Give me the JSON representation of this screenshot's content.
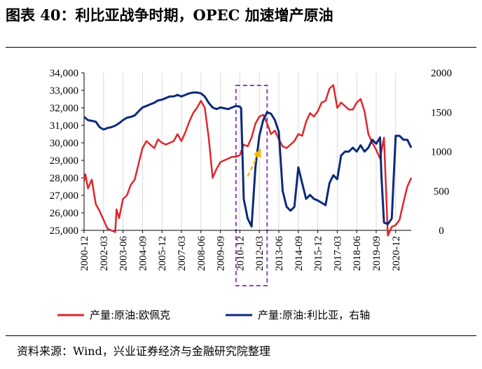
{
  "title": "图表 40：利比亚战争时期，OPEC 加速增产原油",
  "source": "资料来源：Wind，兴业证券经济与金融研究院整理",
  "colors": {
    "opec": "#e0262b",
    "libya": "#0c2a7c",
    "box": "#8b44b8",
    "arrow": "#f5b800"
  },
  "chart_data": {
    "type": "line",
    "x_tick_labels": [
      "2000-12",
      "2002-03",
      "2003-06",
      "2004-09",
      "2005-12",
      "2007-03",
      "2008-06",
      "2009-09",
      "2010-12",
      "2012-03",
      "2013-06",
      "2014-09",
      "2015-12",
      "2017-03",
      "2018-06",
      "2019-09",
      "2020-12"
    ],
    "y_left": {
      "min": 25000,
      "max": 34000,
      "step": 1000,
      "tick_labels": [
        "25,000",
        "26,000",
        "27,000",
        "28,000",
        "29,000",
        "30,000",
        "31,000",
        "32,000",
        "33,000",
        "34,000"
      ]
    },
    "y_right": {
      "min": 0,
      "max": 2000,
      "step": 500,
      "tick_labels": [
        "0",
        "500",
        "1000",
        "1500",
        "2000"
      ]
    },
    "highlight_box": {
      "x_start": "2010-09",
      "x_end": "2012-09"
    },
    "arrow": {
      "from": "2011-06",
      "to": "2012-04"
    },
    "series": [
      {
        "name": "产量:原油:欧佩克",
        "axis": "left",
        "points": [
          [
            "2000-12",
            27800
          ],
          [
            "2001-01",
            28200
          ],
          [
            "2001-03",
            27400
          ],
          [
            "2001-06",
            27900
          ],
          [
            "2001-09",
            26500
          ],
          [
            "2001-12",
            26100
          ],
          [
            "2002-03",
            25600
          ],
          [
            "2002-06",
            25100
          ],
          [
            "2002-09",
            25000
          ],
          [
            "2002-12",
            24900
          ],
          [
            "2003-01",
            26200
          ],
          [
            "2003-03",
            25700
          ],
          [
            "2003-06",
            26800
          ],
          [
            "2003-09",
            27000
          ],
          [
            "2003-12",
            27600
          ],
          [
            "2004-03",
            27900
          ],
          [
            "2004-06",
            28800
          ],
          [
            "2004-09",
            29700
          ],
          [
            "2004-12",
            30100
          ],
          [
            "2005-03",
            29900
          ],
          [
            "2005-06",
            29700
          ],
          [
            "2005-09",
            30200
          ],
          [
            "2005-12",
            30000
          ],
          [
            "2006-03",
            29900
          ],
          [
            "2006-06",
            30000
          ],
          [
            "2006-09",
            30100
          ],
          [
            "2006-12",
            30500
          ],
          [
            "2007-03",
            30100
          ],
          [
            "2007-06",
            30600
          ],
          [
            "2007-09",
            31200
          ],
          [
            "2007-12",
            31700
          ],
          [
            "2008-03",
            32000
          ],
          [
            "2008-06",
            32400
          ],
          [
            "2008-09",
            32000
          ],
          [
            "2008-12",
            30300
          ],
          [
            "2009-03",
            28000
          ],
          [
            "2009-06",
            28500
          ],
          [
            "2009-09",
            28900
          ],
          [
            "2009-12",
            29000
          ],
          [
            "2010-03",
            29100
          ],
          [
            "2010-06",
            29200
          ],
          [
            "2010-09",
            29200
          ],
          [
            "2010-12",
            29300
          ],
          [
            "2011-03",
            29900
          ],
          [
            "2011-06",
            29800
          ],
          [
            "2011-09",
            30300
          ],
          [
            "2011-12",
            31100
          ],
          [
            "2012-03",
            31500
          ],
          [
            "2012-06",
            31600
          ],
          [
            "2012-09",
            31100
          ],
          [
            "2012-12",
            30500
          ],
          [
            "2013-03",
            30700
          ],
          [
            "2013-06",
            30200
          ],
          [
            "2013-09",
            29800
          ],
          [
            "2013-12",
            29700
          ],
          [
            "2014-03",
            29900
          ],
          [
            "2014-06",
            30100
          ],
          [
            "2014-09",
            30500
          ],
          [
            "2014-12",
            30400
          ],
          [
            "2015-03",
            31200
          ],
          [
            "2015-06",
            31700
          ],
          [
            "2015-09",
            31500
          ],
          [
            "2015-12",
            31800
          ],
          [
            "2016-03",
            32300
          ],
          [
            "2016-06",
            32400
          ],
          [
            "2016-09",
            33100
          ],
          [
            "2016-12",
            33300
          ],
          [
            "2017-03",
            32000
          ],
          [
            "2017-06",
            32300
          ],
          [
            "2017-09",
            32100
          ],
          [
            "2017-12",
            31900
          ],
          [
            "2018-03",
            31900
          ],
          [
            "2018-06",
            32300
          ],
          [
            "2018-09",
            32500
          ],
          [
            "2018-12",
            31800
          ],
          [
            "2019-03",
            30500
          ],
          [
            "2019-06",
            30000
          ],
          [
            "2019-09",
            29600
          ],
          [
            "2019-12",
            29100
          ],
          [
            "2020-03",
            30300
          ],
          [
            "2020-06",
            24700
          ],
          [
            "2020-09",
            25200
          ],
          [
            "2020-12",
            25300
          ],
          [
            "2021-03",
            25600
          ],
          [
            "2021-06",
            26600
          ],
          [
            "2021-09",
            27500
          ],
          [
            "2021-12",
            28000
          ]
        ]
      },
      {
        "name": "产量:原油:利比亚，右轴",
        "axis": "right",
        "points": [
          [
            "2000-12",
            1440
          ],
          [
            "2001-03",
            1400
          ],
          [
            "2001-06",
            1390
          ],
          [
            "2001-09",
            1380
          ],
          [
            "2001-12",
            1310
          ],
          [
            "2002-03",
            1280
          ],
          [
            "2002-06",
            1300
          ],
          [
            "2002-09",
            1310
          ],
          [
            "2002-12",
            1330
          ],
          [
            "2003-03",
            1360
          ],
          [
            "2003-06",
            1400
          ],
          [
            "2003-09",
            1430
          ],
          [
            "2003-12",
            1440
          ],
          [
            "2004-03",
            1460
          ],
          [
            "2004-06",
            1510
          ],
          [
            "2004-09",
            1560
          ],
          [
            "2004-12",
            1580
          ],
          [
            "2005-03",
            1600
          ],
          [
            "2005-06",
            1620
          ],
          [
            "2005-09",
            1650
          ],
          [
            "2005-12",
            1660
          ],
          [
            "2006-03",
            1680
          ],
          [
            "2006-06",
            1700
          ],
          [
            "2006-09",
            1700
          ],
          [
            "2006-12",
            1720
          ],
          [
            "2007-03",
            1700
          ],
          [
            "2007-06",
            1720
          ],
          [
            "2007-09",
            1740
          ],
          [
            "2007-12",
            1750
          ],
          [
            "2008-03",
            1750
          ],
          [
            "2008-06",
            1740
          ],
          [
            "2008-09",
            1700
          ],
          [
            "2008-12",
            1620
          ],
          [
            "2009-03",
            1560
          ],
          [
            "2009-06",
            1540
          ],
          [
            "2009-09",
            1560
          ],
          [
            "2009-12",
            1550
          ],
          [
            "2010-03",
            1540
          ],
          [
            "2010-06",
            1560
          ],
          [
            "2010-09",
            1580
          ],
          [
            "2010-12",
            1570
          ],
          [
            "2011-01",
            1550
          ],
          [
            "2011-03",
            400
          ],
          [
            "2011-06",
            150
          ],
          [
            "2011-09",
            50
          ],
          [
            "2011-12",
            800
          ],
          [
            "2012-03",
            1200
          ],
          [
            "2012-06",
            1400
          ],
          [
            "2012-09",
            1500
          ],
          [
            "2012-12",
            1480
          ],
          [
            "2013-03",
            1400
          ],
          [
            "2013-06",
            1250
          ],
          [
            "2013-09",
            500
          ],
          [
            "2013-12",
            300
          ],
          [
            "2014-03",
            250
          ],
          [
            "2014-06",
            300
          ],
          [
            "2014-09",
            800
          ],
          [
            "2014-12",
            600
          ],
          [
            "2015-03",
            400
          ],
          [
            "2015-06",
            450
          ],
          [
            "2015-09",
            400
          ],
          [
            "2015-12",
            380
          ],
          [
            "2016-03",
            350
          ],
          [
            "2016-06",
            320
          ],
          [
            "2016-09",
            600
          ],
          [
            "2016-12",
            700
          ],
          [
            "2017-03",
            650
          ],
          [
            "2017-06",
            950
          ],
          [
            "2017-09",
            1000
          ],
          [
            "2017-12",
            1000
          ],
          [
            "2018-03",
            1050
          ],
          [
            "2018-06",
            1000
          ],
          [
            "2018-09",
            1080
          ],
          [
            "2018-12",
            1000
          ],
          [
            "2019-03",
            1050
          ],
          [
            "2019-06",
            1150
          ],
          [
            "2019-09",
            1100
          ],
          [
            "2019-12",
            1180
          ],
          [
            "2020-01",
            700
          ],
          [
            "2020-03",
            100
          ],
          [
            "2020-06",
            80
          ],
          [
            "2020-09",
            150
          ],
          [
            "2020-12",
            1200
          ],
          [
            "2021-03",
            1200
          ],
          [
            "2021-06",
            1150
          ],
          [
            "2021-09",
            1150
          ],
          [
            "2021-12",
            1050
          ]
        ]
      }
    ]
  }
}
